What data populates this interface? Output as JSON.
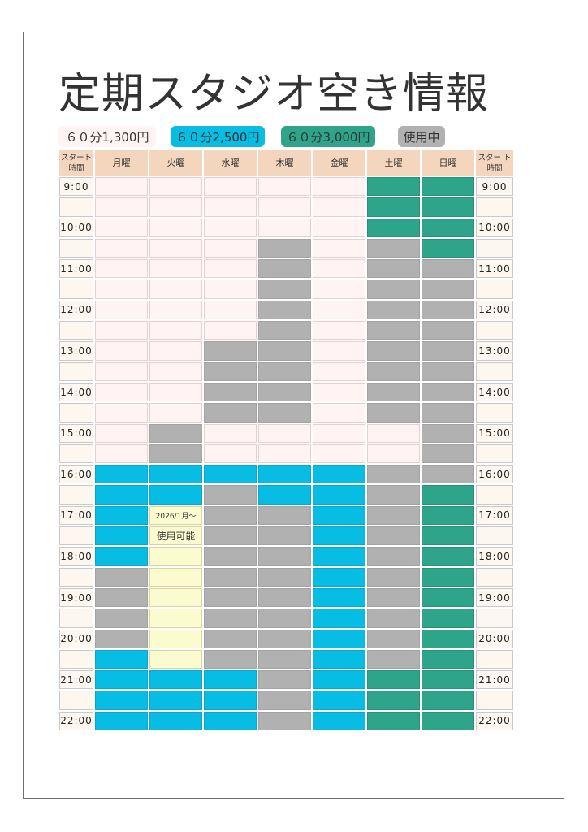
{
  "title": "定期スタジオ空き情報",
  "legend": {
    "pink": "６０分1,300円",
    "blue": "６０分2,500円",
    "green": "６０分3,000円",
    "gray": "使用中"
  },
  "colors": {
    "pink": "#fff3f3",
    "blue": "#08bde3",
    "green": "#2ea58b",
    "gray": "#b1b1b1",
    "yellow": "#fcfbd0",
    "header": "#f4d6bf"
  },
  "header": {
    "start_time_left": "スタート時間",
    "start_time_right": "スター ト時間",
    "days": [
      "月曜",
      "火曜",
      "水曜",
      "木曜",
      "金曜",
      "土曜",
      "日曜"
    ]
  },
  "times": [
    "9:00",
    "",
    "10:00",
    "",
    "11:00",
    "",
    "12:00",
    "",
    "13:00",
    "",
    "14:00",
    "",
    "15:00",
    "",
    "16:00",
    "",
    "17:00",
    "",
    "18:00",
    "",
    "19:00",
    "",
    "20:00",
    "",
    "21:00",
    "",
    "22:00"
  ],
  "note": {
    "line1": "2026/1月～",
    "line2": "使用可能"
  },
  "rows": [
    "pppppgg",
    "pppppgg",
    "pppppgg",
    "pppxpxg",
    "pppxpxx",
    "pppxpxx",
    "pppxpxx",
    "pppxpxx",
    "ppxxpxx",
    "ppxxpxx",
    "ppxxpxx",
    "ppxxpxx",
    "pxppppx",
    "pxppppx",
    "bbbbbxx",
    "bbxbbxg",
    "bnxxbxg",
    "bmxxbxg",
    "byxxbxg",
    "xyxxbxg",
    "xyxxbxg",
    "xyxxbxg",
    "xyxxbxg",
    "byxxbxg",
    "bbbxbgg",
    "bbbxbgg",
    "bbbxbgg"
  ]
}
